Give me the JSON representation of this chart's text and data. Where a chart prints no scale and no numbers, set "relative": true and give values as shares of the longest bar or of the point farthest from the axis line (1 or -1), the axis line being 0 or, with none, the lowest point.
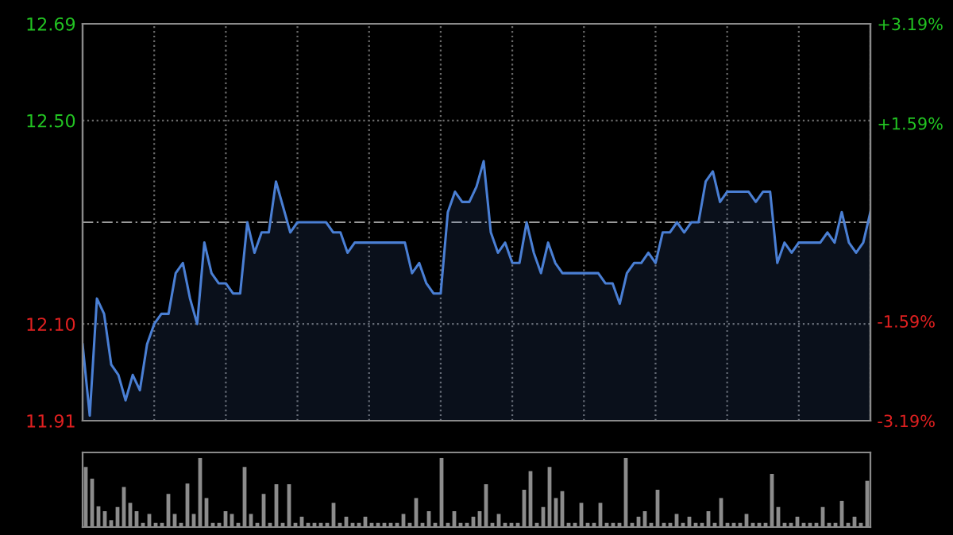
{
  "chart_data": [
    {
      "type": "area",
      "categories": [
        null,
        null,
        null,
        null,
        null,
        null,
        null,
        null,
        null,
        null,
        null,
        null,
        null,
        null,
        null,
        null,
        null,
        null,
        null,
        null,
        null,
        null,
        null,
        null,
        null,
        null,
        null,
        null,
        null,
        null,
        null,
        null,
        null,
        null,
        null,
        null,
        null,
        null,
        null,
        null,
        null,
        null,
        null,
        null,
        null,
        null,
        null,
        null,
        null,
        null,
        null,
        null,
        null,
        null,
        null,
        null,
        null,
        null,
        null,
        null,
        null,
        null,
        null,
        null,
        null,
        null,
        null,
        null,
        null,
        null,
        null,
        null,
        null,
        null,
        null,
        null,
        null,
        null,
        null,
        null,
        null,
        null,
        null,
        null,
        null,
        null,
        null,
        null,
        null,
        null,
        null,
        null,
        null,
        null,
        null,
        null,
        null,
        null,
        null,
        null,
        null,
        null,
        null,
        null,
        null,
        null,
        null,
        null,
        null,
        null,
        null
      ],
      "series": [
        {
          "color": "#4a7fd4",
          "values": [
            12.06,
            11.92,
            12.15,
            12.12,
            12.02,
            12.0,
            11.95,
            12.0,
            11.97,
            12.06,
            12.1,
            12.12,
            12.12,
            12.2,
            12.22,
            12.15,
            12.1,
            12.26,
            12.2,
            12.18,
            12.18,
            12.16,
            12.16,
            12.3,
            12.24,
            12.28,
            12.28,
            12.38,
            12.33,
            12.28,
            12.3,
            12.3,
            12.3,
            12.3,
            12.3,
            12.28,
            12.28,
            12.24,
            12.26,
            12.26,
            12.26,
            12.26,
            12.26,
            12.26,
            12.26,
            12.26,
            12.2,
            12.22,
            12.18,
            12.16,
            12.16,
            12.32,
            12.36,
            12.34,
            12.34,
            12.37,
            12.42,
            12.28,
            12.24,
            12.26,
            12.22,
            12.22,
            12.3,
            12.24,
            12.2,
            12.26,
            12.22,
            12.2,
            12.2,
            12.2,
            12.2,
            12.2,
            12.2,
            12.18,
            12.18,
            12.14,
            12.2,
            12.22,
            12.22,
            12.24,
            12.22,
            12.28,
            12.28,
            12.3,
            12.28,
            12.3,
            12.3,
            12.38,
            12.4,
            12.34,
            12.36,
            12.36,
            12.36,
            12.36,
            12.34,
            12.36,
            12.36,
            12.22,
            12.26,
            12.24,
            12.26,
            12.26,
            12.26,
            12.26,
            12.28,
            12.26,
            12.32,
            12.26,
            12.24,
            12.26,
            12.32
          ]
        }
      ],
      "ylim": [
        11.91,
        12.69
      ],
      "yticks": [
        11.91,
        {
          "value": 12.1,
          "label": "12.10"
        },
        {
          "value": 12.5,
          "label": "12.50"
        },
        12.69
      ],
      "y2lim": [
        -3.19,
        3.19
      ],
      "y2ticks": [
        {
          "value": -3.19,
          "label": "-3.19%"
        },
        {
          "value": -1.59,
          "label": "-1.59%"
        },
        {
          "value": 1.59,
          "label": "+1.59%"
        },
        {
          "value": 3.19,
          "label": "+3.19%"
        }
      ],
      "ref_lines": [
        {
          "axis": "y",
          "value": 12.3,
          "color": "#9a9a9a",
          "line_style": "dashed"
        }
      ],
      "grid": true
    },
    {
      "type": "bar",
      "relative": true,
      "color": "#8c8c8c",
      "categories": [
        null,
        null,
        null,
        null,
        null,
        null,
        null,
        null,
        null,
        null,
        null,
        null,
        null,
        null,
        null,
        null,
        null,
        null,
        null,
        null,
        null,
        null,
        null,
        null,
        null,
        null,
        null,
        null,
        null,
        null,
        null,
        null,
        null,
        null,
        null,
        null,
        null,
        null,
        null,
        null,
        null,
        null,
        null,
        null,
        null,
        null,
        null,
        null,
        null,
        null,
        null,
        null,
        null,
        null,
        null,
        null,
        null,
        null,
        null,
        null,
        null,
        null,
        null,
        null,
        null,
        null,
        null,
        null,
        null,
        null,
        null,
        null,
        null,
        null,
        null,
        null,
        null,
        null,
        null,
        null,
        null,
        null,
        null,
        null,
        null,
        null,
        null,
        null,
        null,
        null,
        null,
        null,
        null,
        null,
        null,
        null,
        null,
        null,
        null,
        null,
        null,
        null,
        null,
        null,
        null,
        null,
        null,
        null,
        null,
        null,
        null,
        null,
        null,
        null,
        null,
        null,
        null,
        null,
        null,
        null,
        null,
        null,
        null,
        null
      ],
      "values": [
        0.87,
        0.7,
        0.3,
        0.23,
        0.1,
        0.29,
        0.58,
        0.35,
        0.23,
        0.06,
        0.19,
        0.06,
        0.06,
        0.48,
        0.19,
        0.06,
        0.63,
        0.19,
        1,
        0.42,
        0.06,
        0.06,
        0.23,
        0.19,
        0.06,
        0.87,
        0.19,
        0.06,
        0.48,
        0.06,
        0.62,
        0.06,
        0.62,
        0.06,
        0.15,
        0.06,
        0.06,
        0.06,
        0.06,
        0.35,
        0.06,
        0.15,
        0.06,
        0.06,
        0.15,
        0.06,
        0.06,
        0.06,
        0.06,
        0.06,
        0.19,
        0.06,
        0.42,
        0.06,
        0.23,
        0.06,
        1,
        0.06,
        0.23,
        0.06,
        0.06,
        0.15,
        0.23,
        0.62,
        0.06,
        0.19,
        0.06,
        0.06,
        0.06,
        0.54,
        0.81,
        0.06,
        0.29,
        0.87,
        0.42,
        0.52,
        0.06,
        0.06,
        0.35,
        0.06,
        0.06,
        0.35,
        0.06,
        0.06,
        0.06,
        1,
        0.06,
        0.15,
        0.23,
        0.06,
        0.54,
        0.06,
        0.06,
        0.19,
        0.06,
        0.15,
        0.06,
        0.06,
        0.23,
        0.06,
        0.42,
        0.06,
        0.06,
        0.06,
        0.19,
        0.06,
        0.06,
        0.06,
        0.77,
        0.29,
        0.06,
        0.06,
        0.15,
        0.06,
        0.06,
        0.06,
        0.29,
        0.06,
        0.06,
        0.38,
        0.06,
        0.15,
        0.06,
        0.67
      ]
    }
  ]
}
